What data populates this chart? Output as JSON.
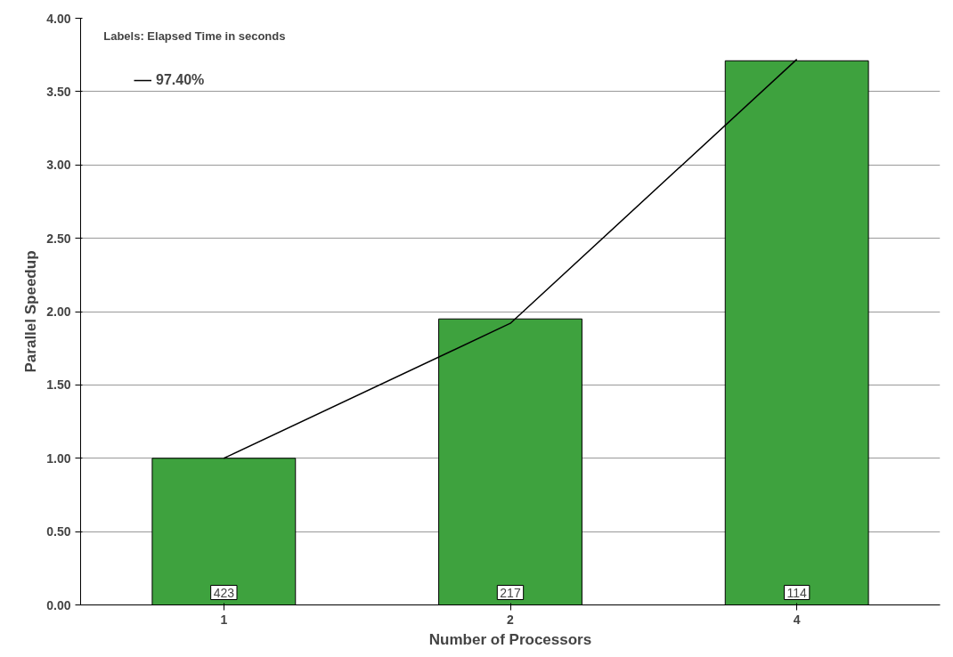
{
  "chart_data": {
    "type": "bar",
    "xlabel": "Number of Processors",
    "ylabel": "Parallel Speedup",
    "annotations": [
      "Labels: Elapsed Time in seconds",
      {
        "text": "423",
        "x": "1",
        "y": 0
      },
      {
        "text": "217",
        "x": "2",
        "y": 0
      },
      {
        "text": "114",
        "x": "4",
        "y": 0
      }
    ],
    "categories": [
      "1",
      "2",
      "4"
    ],
    "series": [
      {
        "color": "#3ea23e",
        "values": [
          1.0,
          1.95,
          3.71
        ]
      },
      {
        "type": "line",
        "name": "97.40%",
        "color": "#000000",
        "values": [
          1.0,
          1.92,
          3.72
        ]
      }
    ],
    "ylim": [
      0,
      4
    ],
    "yticks": [
      {
        "value": 0,
        "label": "0.00"
      },
      {
        "value": 0.5,
        "label": "0.50"
      },
      {
        "value": 1,
        "label": "1.00"
      },
      {
        "value": 1.5,
        "label": "1.50"
      },
      {
        "value": 2,
        "label": "2.00"
      },
      {
        "value": 2.5,
        "label": "2.50"
      },
      {
        "value": 3,
        "label": "3.00"
      },
      {
        "value": 3.5,
        "label": "3.50"
      },
      {
        "value": 4,
        "label": "4.00"
      }
    ],
    "grid": "y",
    "legend": "top left",
    "marker": "none",
    "line_style": "solid"
  }
}
